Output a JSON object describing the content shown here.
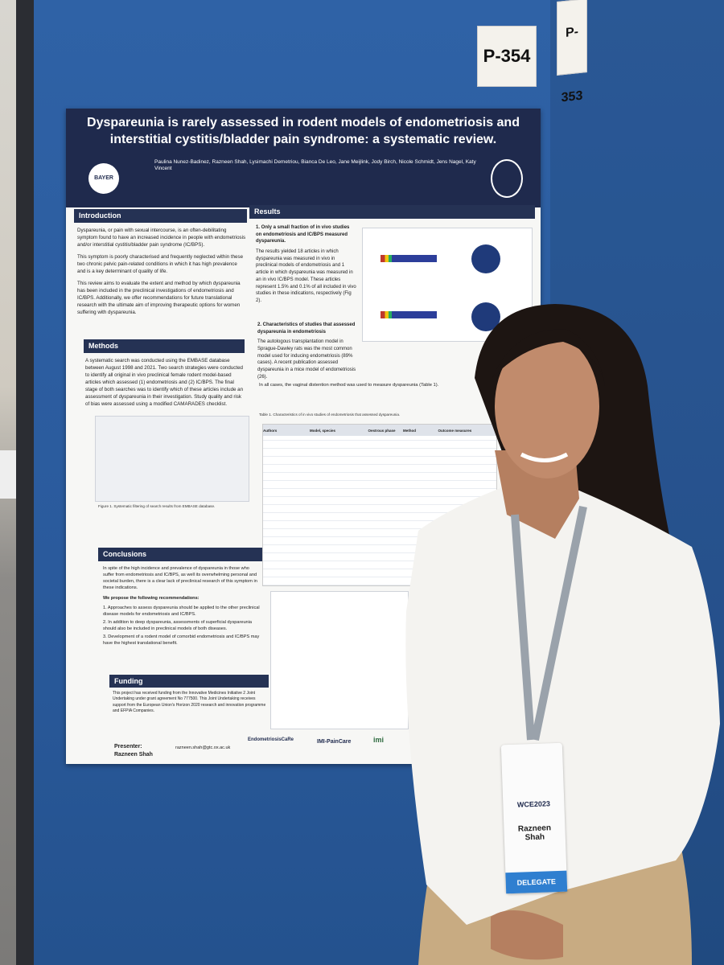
{
  "boards": {
    "left_tag": "P-354",
    "right_tag": "P-353"
  },
  "poster": {
    "title": "Dyspareunia is rarely assessed in rodent models of endometriosis and interstitial cystitis/bladder pain syndrome: a systematic review.",
    "authors": "Paulina Nunez-Badinez, Razneen Shah, Lysimachi Demetriou, Bianca De Leo, Jane Meijlink, Jody Birch, Nicole Schmidt, Jens Nagel, Katy Vincent",
    "left_logo": "BAYER",
    "introduction": {
      "heading": "Introduction",
      "paragraphs": [
        "Dyspareunia, or pain with sexual intercourse, is an often-debilitating symptom found to have an increased incidence in people with endometriosis and/or interstitial cystitis/bladder pain syndrome (IC/BPS).",
        "This symptom is poorly characterised and frequently neglected within these two chronic pelvic pain-related conditions in which it has high prevalence and is a key determinant of quality of life.",
        "This review aims to evaluate the extent and method by which dyspareunia has been included in the preclinical investigations of endometriosis and IC/BPS. Additionally, we offer recommendations for future translational research with the ultimate aim of improving therapeutic options for women suffering with dyspareunia."
      ]
    },
    "methods": {
      "heading": "Methods",
      "paragraphs": [
        "A systematic search was conducted using the EMBASE database between August 1998 and 2021. Two search strategies were conducted to identify all original in vivo preclinical female rodent model-based articles which assessed (1) endometriosis and (2) IC/BPS. The final stage of both searches was to identify which of these articles include an assessment of dyspareunia in their investigation. Study quality and risk of bias were assessed using a modified CAMARADES checklist."
      ],
      "caption": "Figure 1. Systematic filtering of search results from EMBASE database."
    },
    "conclusions": {
      "heading": "Conclusions",
      "paragraphs": [
        "In spite of the high incidence and prevalence of dyspareunia in those who suffer from endometriosis and IC/BPS, as well its overwhelming personal and societal burden, there is a clear lack of preclinical research of this symptom in these indications.",
        "We propose the following recommendations:",
        "1. Approaches to assess dyspareunia should be applied to the other preclinical disease models for endometriosis and IC/BPS.",
        "2. In addition to deep dyspareunia, assessments of superficial dyspareunia should also be included in preclinical models of both diseases.",
        "3. Development of a rodent model of comorbid endometriosis and IC/BPS may have the highest translational benefit."
      ]
    },
    "funding": {
      "heading": "Funding",
      "text": "This project has received funding from the Innovative Medicines Initiative 2 Joint Undertaking under grant agreement No 777500. This Joint Undertaking receives support from the European Union's Horizon 2020 research and innovation programme and EFPIA Companies."
    },
    "presenter_label": "Presenter:",
    "presenter": "Razneen Shah",
    "email": "razneen.shah@gtc.ox.ac.uk",
    "footer_logos": [
      "EndometriosisCaRe",
      "IMI-PainCare",
      "imi"
    ],
    "results": {
      "heading": "Results",
      "point1_heading": "1. Only a small fraction of in vivo studies on endometriosis and IC/BPS measured dyspareunia.",
      "point1_text": "The results yielded 18 articles in which dyspareunia was measured in vivo in preclinical models of endometriosis and 1 article in which dyspareunia was measured in an in vivo IC/BPS model. These articles represent 1.5% and 0.1% of all included in vivo studies in these indications, respectively (Fig 2).",
      "point2_heading": "2. Characteristics of studies that assessed dyspareunia in endometriosis",
      "point2_text": "The autologous transplantation model in Sprague-Dawley rats was the most common model used for inducing endometriosis (89% cases). A recent publication assessed dyspareunia in a mice model of endometriosis (26).",
      "point3_text": "In all cases, the vaginal distention method was used to measure dyspareunia (Table 1).",
      "table_caption": "Table 1. Characteristics of in vivo studies of endometriosis that assessed dyspareunia.",
      "table_headers": [
        "Authors",
        "Model, species",
        "Oestrous phase",
        "Method",
        "Outcome measures"
      ]
    }
  },
  "badge": {
    "event": "WCE2023",
    "first_name": "Razneen",
    "last_name": "Shah",
    "role": "DELEGATE"
  }
}
